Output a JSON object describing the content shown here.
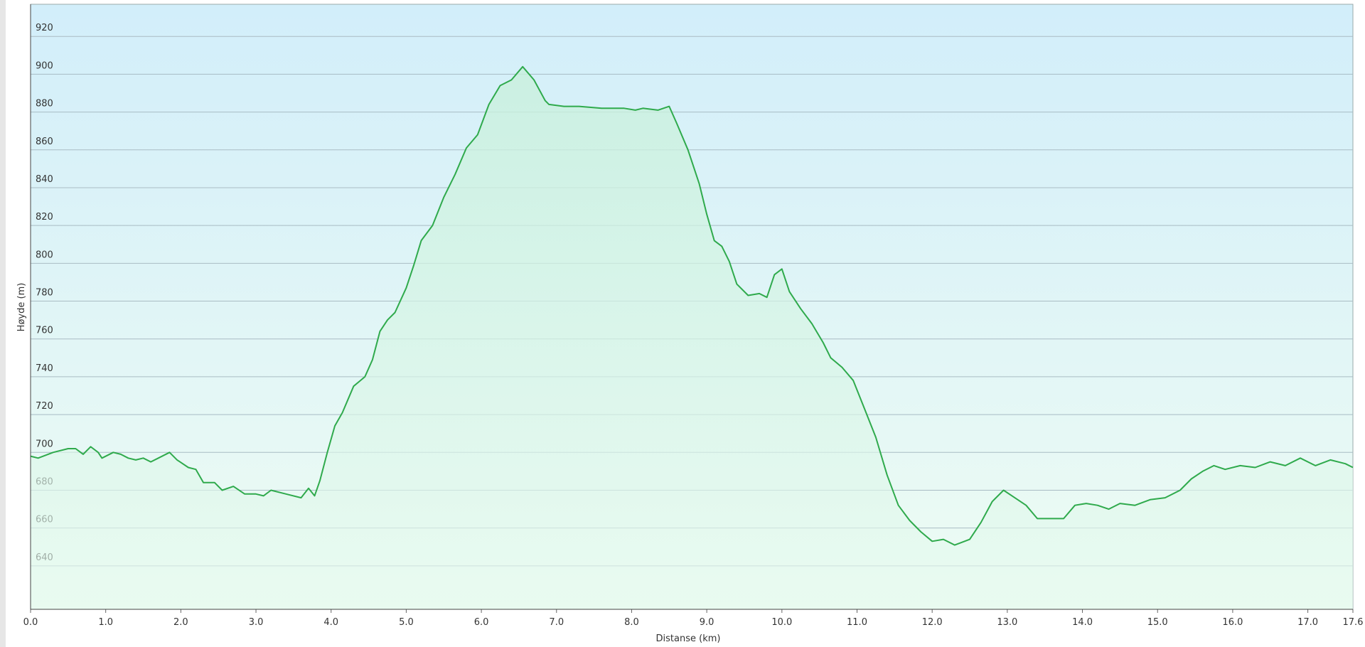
{
  "chart_data": {
    "type": "line",
    "x_label": "Distanse  (km)",
    "y_label": "Høyde (m)",
    "x": [
      0.0,
      0.1,
      0.3,
      0.5,
      0.6,
      0.7,
      0.8,
      0.9,
      0.95,
      1.1,
      1.2,
      1.3,
      1.4,
      1.5,
      1.6,
      1.7,
      1.85,
      1.95,
      2.1,
      2.2,
      2.3,
      2.45,
      2.55,
      2.7,
      2.85,
      3.0,
      3.1,
      3.2,
      3.4,
      3.6,
      3.7,
      3.78,
      3.85,
      3.95,
      4.05,
      4.15,
      4.3,
      4.45,
      4.55,
      4.65,
      4.75,
      4.85,
      5.0,
      5.1,
      5.2,
      5.35,
      5.5,
      5.65,
      5.8,
      5.95,
      6.1,
      6.25,
      6.4,
      6.55,
      6.7,
      6.85,
      6.9,
      7.1,
      7.3,
      7.6,
      7.9,
      8.05,
      8.15,
      8.35,
      8.5,
      8.6,
      8.75,
      8.9,
      9.0,
      9.1,
      9.2,
      9.3,
      9.4,
      9.55,
      9.7,
      9.8,
      9.9,
      10.0,
      10.1,
      10.25,
      10.4,
      10.55,
      10.65,
      10.8,
      10.95,
      11.1,
      11.25,
      11.4,
      11.55,
      11.7,
      11.85,
      12.0,
      12.15,
      12.3,
      12.5,
      12.65,
      12.8,
      12.95,
      13.1,
      13.25,
      13.4,
      13.6,
      13.75,
      13.9,
      14.05,
      14.2,
      14.35,
      14.5,
      14.7,
      14.9,
      15.1,
      15.3,
      15.45,
      15.6,
      15.75,
      15.9,
      16.1,
      16.3,
      16.5,
      16.7,
      16.9,
      17.1,
      17.3,
      17.5,
      17.6
    ],
    "values": [
      698,
      697,
      700,
      702,
      702,
      699,
      703,
      700,
      697,
      700,
      699,
      697,
      696,
      697,
      695,
      697,
      700,
      696,
      692,
      691,
      684,
      684,
      680,
      682,
      678,
      678,
      677,
      680,
      678,
      676,
      681,
      677,
      685,
      700,
      714,
      721,
      735,
      740,
      749,
      764,
      770,
      774,
      787,
      799,
      812,
      820,
      835,
      847,
      861,
      868,
      884,
      894,
      897,
      904,
      897,
      886,
      884,
      883,
      883,
      882,
      882,
      881,
      882,
      881,
      883,
      874,
      860,
      842,
      826,
      812,
      809,
      801,
      789,
      783,
      784,
      782,
      794,
      797,
      785,
      776,
      768,
      758,
      750,
      745,
      738,
      723,
      708,
      688,
      672,
      664,
      658,
      653,
      654,
      651,
      654,
      663,
      674,
      680,
      676,
      672,
      665,
      665,
      665,
      672,
      673,
      672,
      670,
      673,
      672,
      675,
      676,
      680,
      686,
      690,
      693,
      691,
      693,
      692,
      695,
      693,
      697,
      693,
      696,
      694,
      692
    ],
    "color": "#2faa4c",
    "xlim": [
      0,
      17.6
    ],
    "ylim": [
      617,
      937
    ],
    "xticks": [
      {
        "value": 0,
        "label": "0.0"
      },
      {
        "value": 1,
        "label": "1.0"
      },
      {
        "value": 2,
        "label": "2.0"
      },
      {
        "value": 3,
        "label": "3.0"
      },
      {
        "value": 4,
        "label": "4.0"
      },
      {
        "value": 5,
        "label": "5.0"
      },
      {
        "value": 6,
        "label": "6.0"
      },
      {
        "value": 7,
        "label": "7.0"
      },
      {
        "value": 8,
        "label": "8.0"
      },
      {
        "value": 9,
        "label": "9.0"
      },
      {
        "value": 10,
        "label": "10.0"
      },
      {
        "value": 11,
        "label": "11.0"
      },
      {
        "value": 12,
        "label": "12.0"
      },
      {
        "value": 13,
        "label": "13.0"
      },
      {
        "value": 14,
        "label": "14.0"
      },
      {
        "value": 15,
        "label": "15.0"
      },
      {
        "value": 16,
        "label": "16.0"
      },
      {
        "value": 17,
        "label": "17.0"
      },
      17.6
    ],
    "yticks": [
      640,
      660,
      680,
      700,
      720,
      740,
      760,
      780,
      800,
      820,
      840,
      860,
      880,
      900,
      920
    ],
    "grid": true
  }
}
